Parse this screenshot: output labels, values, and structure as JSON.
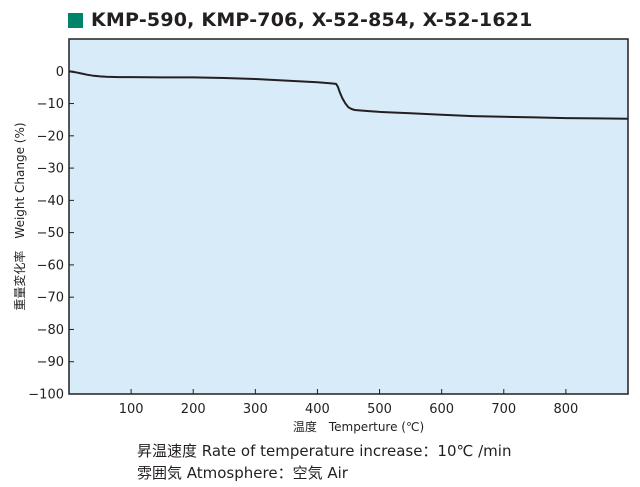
{
  "colors": {
    "accent": "#00836b",
    "plot_bg": "#d7ecf8",
    "line": "#231f20"
  },
  "notes": {
    "rate": "昇温速度 Rate of temperature increase：10℃ /min",
    "atmosphere": "雰囲気 Atmosphere：空気 Air"
  },
  "chart_data": {
    "type": "line",
    "title": "KMP-590, KMP-706, X-52-854, X-52-1621",
    "xlabel": "温度　Temperture (℃)",
    "ylabel": "重量変化率　Weight Change (%)",
    "xlim": [
      0,
      900
    ],
    "ylim": [
      -100,
      10
    ],
    "xticks": [
      100,
      200,
      300,
      400,
      500,
      600,
      700,
      800
    ],
    "xtick_labels": [
      "100",
      "200",
      "300",
      "400",
      "500",
      "600",
      "700",
      "800"
    ],
    "yticks": [
      0,
      -10,
      -20,
      -30,
      -40,
      -50,
      -60,
      -70,
      -80,
      -90,
      -100
    ],
    "ytick_labels": [
      "0",
      "−10",
      "−20",
      "−30",
      "−40",
      "−50",
      "−60",
      "−70",
      "−80",
      "−90",
      "−100"
    ],
    "grid": false,
    "series": [
      {
        "x": [
          0,
          10,
          20,
          30,
          40,
          50,
          60,
          80,
          100,
          150,
          200,
          250,
          300,
          350,
          400,
          420,
          430,
          433,
          436,
          440,
          445,
          450,
          455,
          460,
          480,
          500,
          550,
          600,
          650,
          700,
          750,
          800,
          850,
          900
        ],
        "y": [
          0,
          -0.3,
          -0.7,
          -1.1,
          -1.4,
          -1.6,
          -1.7,
          -1.8,
          -1.8,
          -1.9,
          -1.9,
          -2.1,
          -2.4,
          -2.9,
          -3.4,
          -3.7,
          -3.9,
          -4.8,
          -6.5,
          -8.3,
          -10.0,
          -11.2,
          -11.7,
          -12.0,
          -12.3,
          -12.6,
          -13.0,
          -13.5,
          -13.9,
          -14.1,
          -14.3,
          -14.5,
          -14.6,
          -14.7
        ]
      }
    ]
  }
}
